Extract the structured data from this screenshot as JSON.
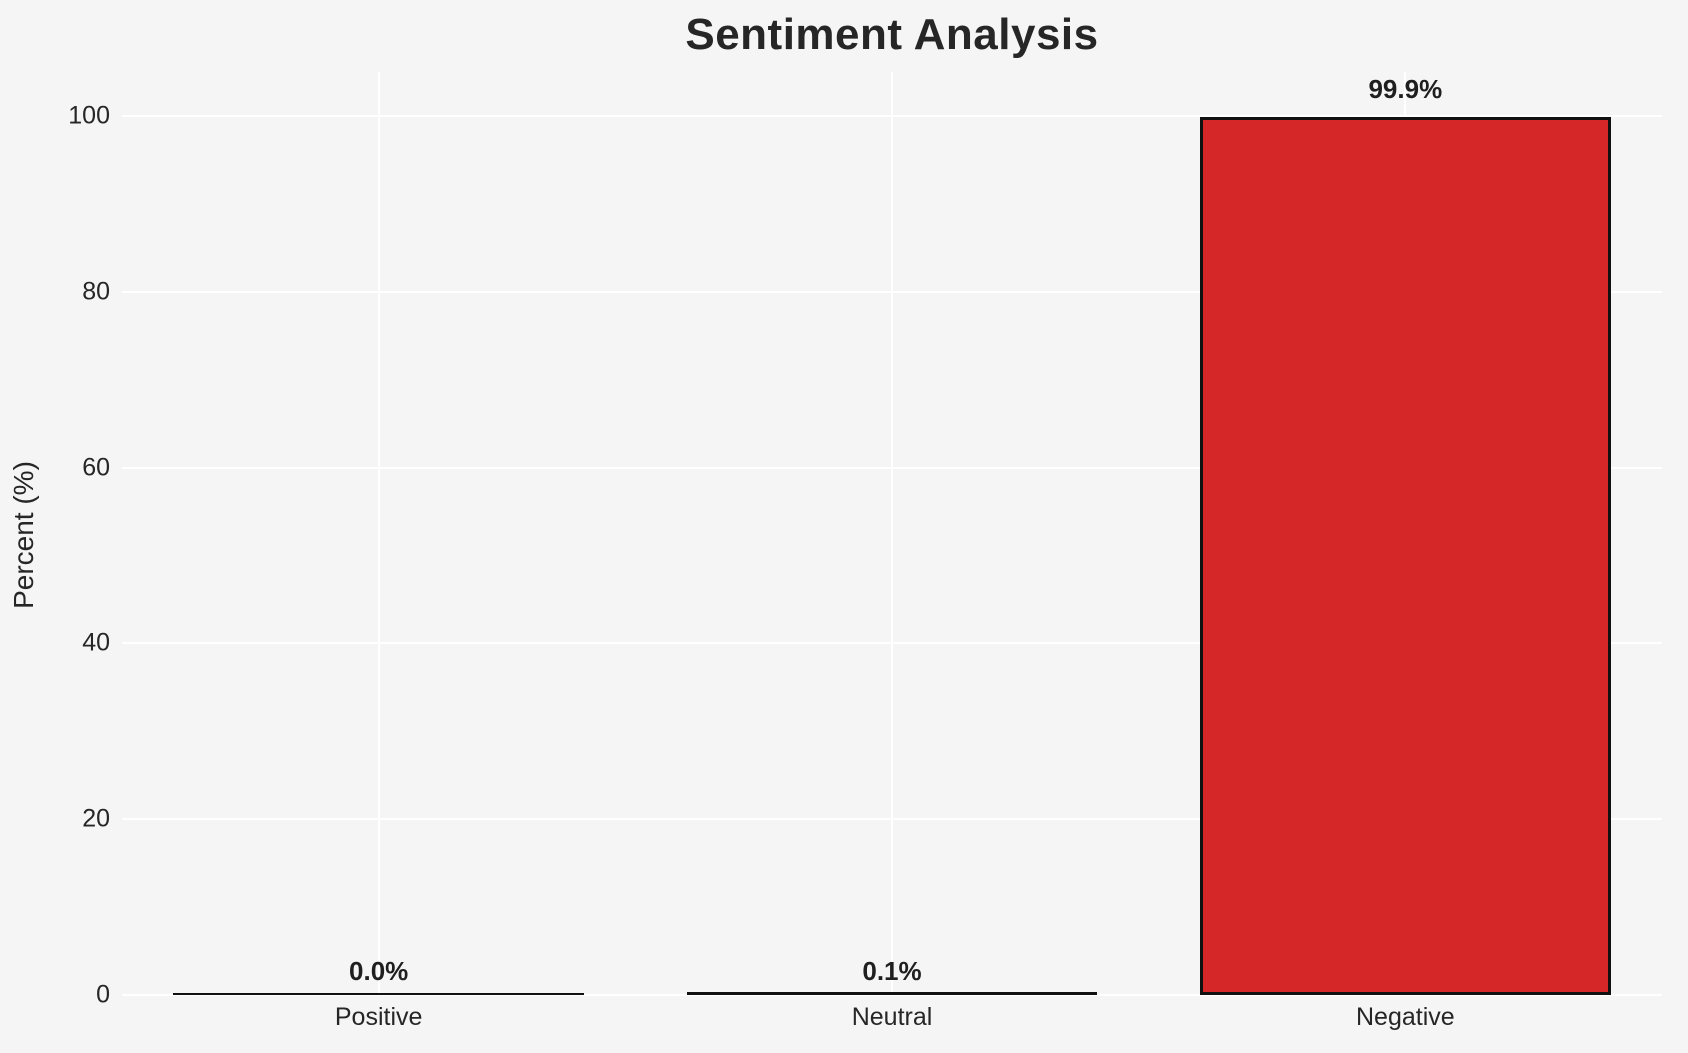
{
  "chart_data": {
    "type": "bar",
    "title": "Sentiment Analysis",
    "categories": [
      "Positive",
      "Neutral",
      "Negative"
    ],
    "values": [
      0.0,
      0.1,
      99.9
    ],
    "value_labels": [
      "0.0%",
      "0.1%",
      "99.9%"
    ],
    "xlabel": "",
    "ylabel": "Percent (%)",
    "ylim": [
      0,
      105
    ],
    "yticks": [
      0,
      20,
      40,
      60,
      80,
      100
    ],
    "ytick_labels": [
      "0",
      "20",
      "40",
      "60",
      "80",
      "100"
    ],
    "grid": true,
    "legend": "none",
    "colors": {
      "bar_fill": "#d62728",
      "bar_edge": "#111111",
      "background": "#f5f5f5",
      "gridline": "#ffffff",
      "text": "#262626"
    }
  }
}
